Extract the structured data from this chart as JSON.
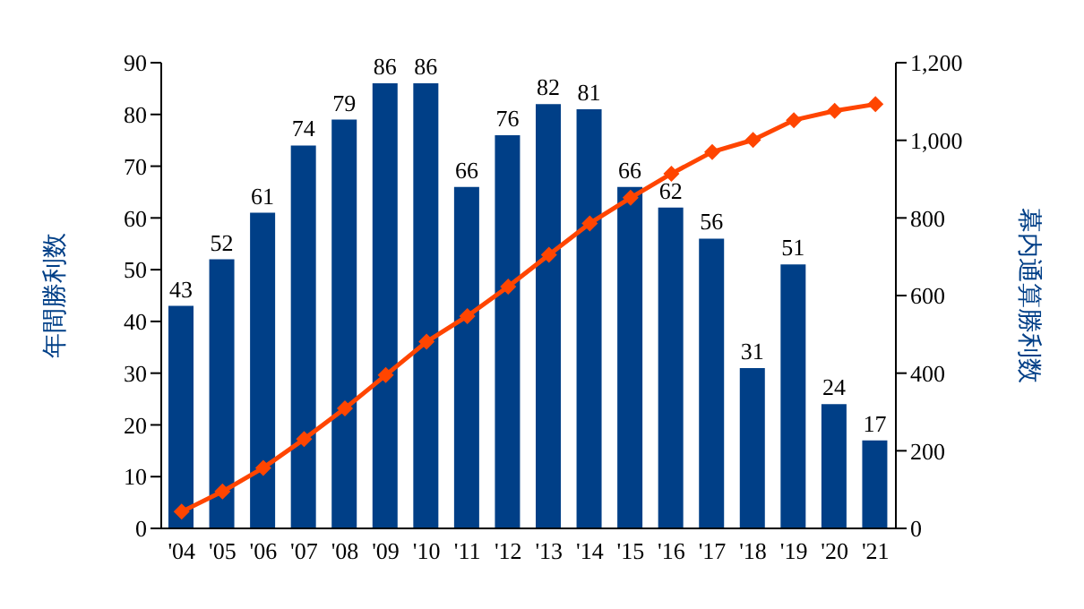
{
  "chart_data": {
    "type": "bar",
    "ylabel": "年間勝利数",
    "y2label": "幕内通算勝利数",
    "categories": [
      "'04",
      "'05",
      "'06",
      "'07",
      "'08",
      "'09",
      "'10",
      "'11",
      "'12",
      "'13",
      "'14",
      "'15",
      "'16",
      "'17",
      "'18",
      "'19",
      "'20",
      "'21"
    ],
    "series": [
      {
        "color": "#003f87",
        "data_labels": true,
        "values": [
          43,
          52,
          61,
          74,
          79,
          86,
          86,
          66,
          76,
          82,
          81,
          66,
          62,
          56,
          31,
          51,
          24,
          17
        ]
      },
      {
        "type": "line",
        "axis": "y2",
        "color": "#ff4500",
        "marker": "diamond",
        "values": [
          43,
          95,
          156,
          230,
          309,
          395,
          481,
          547,
          623,
          705,
          786,
          852,
          914,
          970,
          1001,
          1052,
          1076,
          1093
        ]
      }
    ],
    "ylim": [
      0,
      90
    ],
    "yticks": [
      0,
      10,
      20,
      30,
      40,
      50,
      60,
      70,
      80,
      90
    ],
    "y2lim": [
      0,
      1200
    ],
    "y2ticks": [
      0,
      200,
      400,
      600,
      800,
      {
        "value": 1000,
        "label": "1,000"
      },
      {
        "value": 1200,
        "label": "1,200"
      }
    ]
  }
}
